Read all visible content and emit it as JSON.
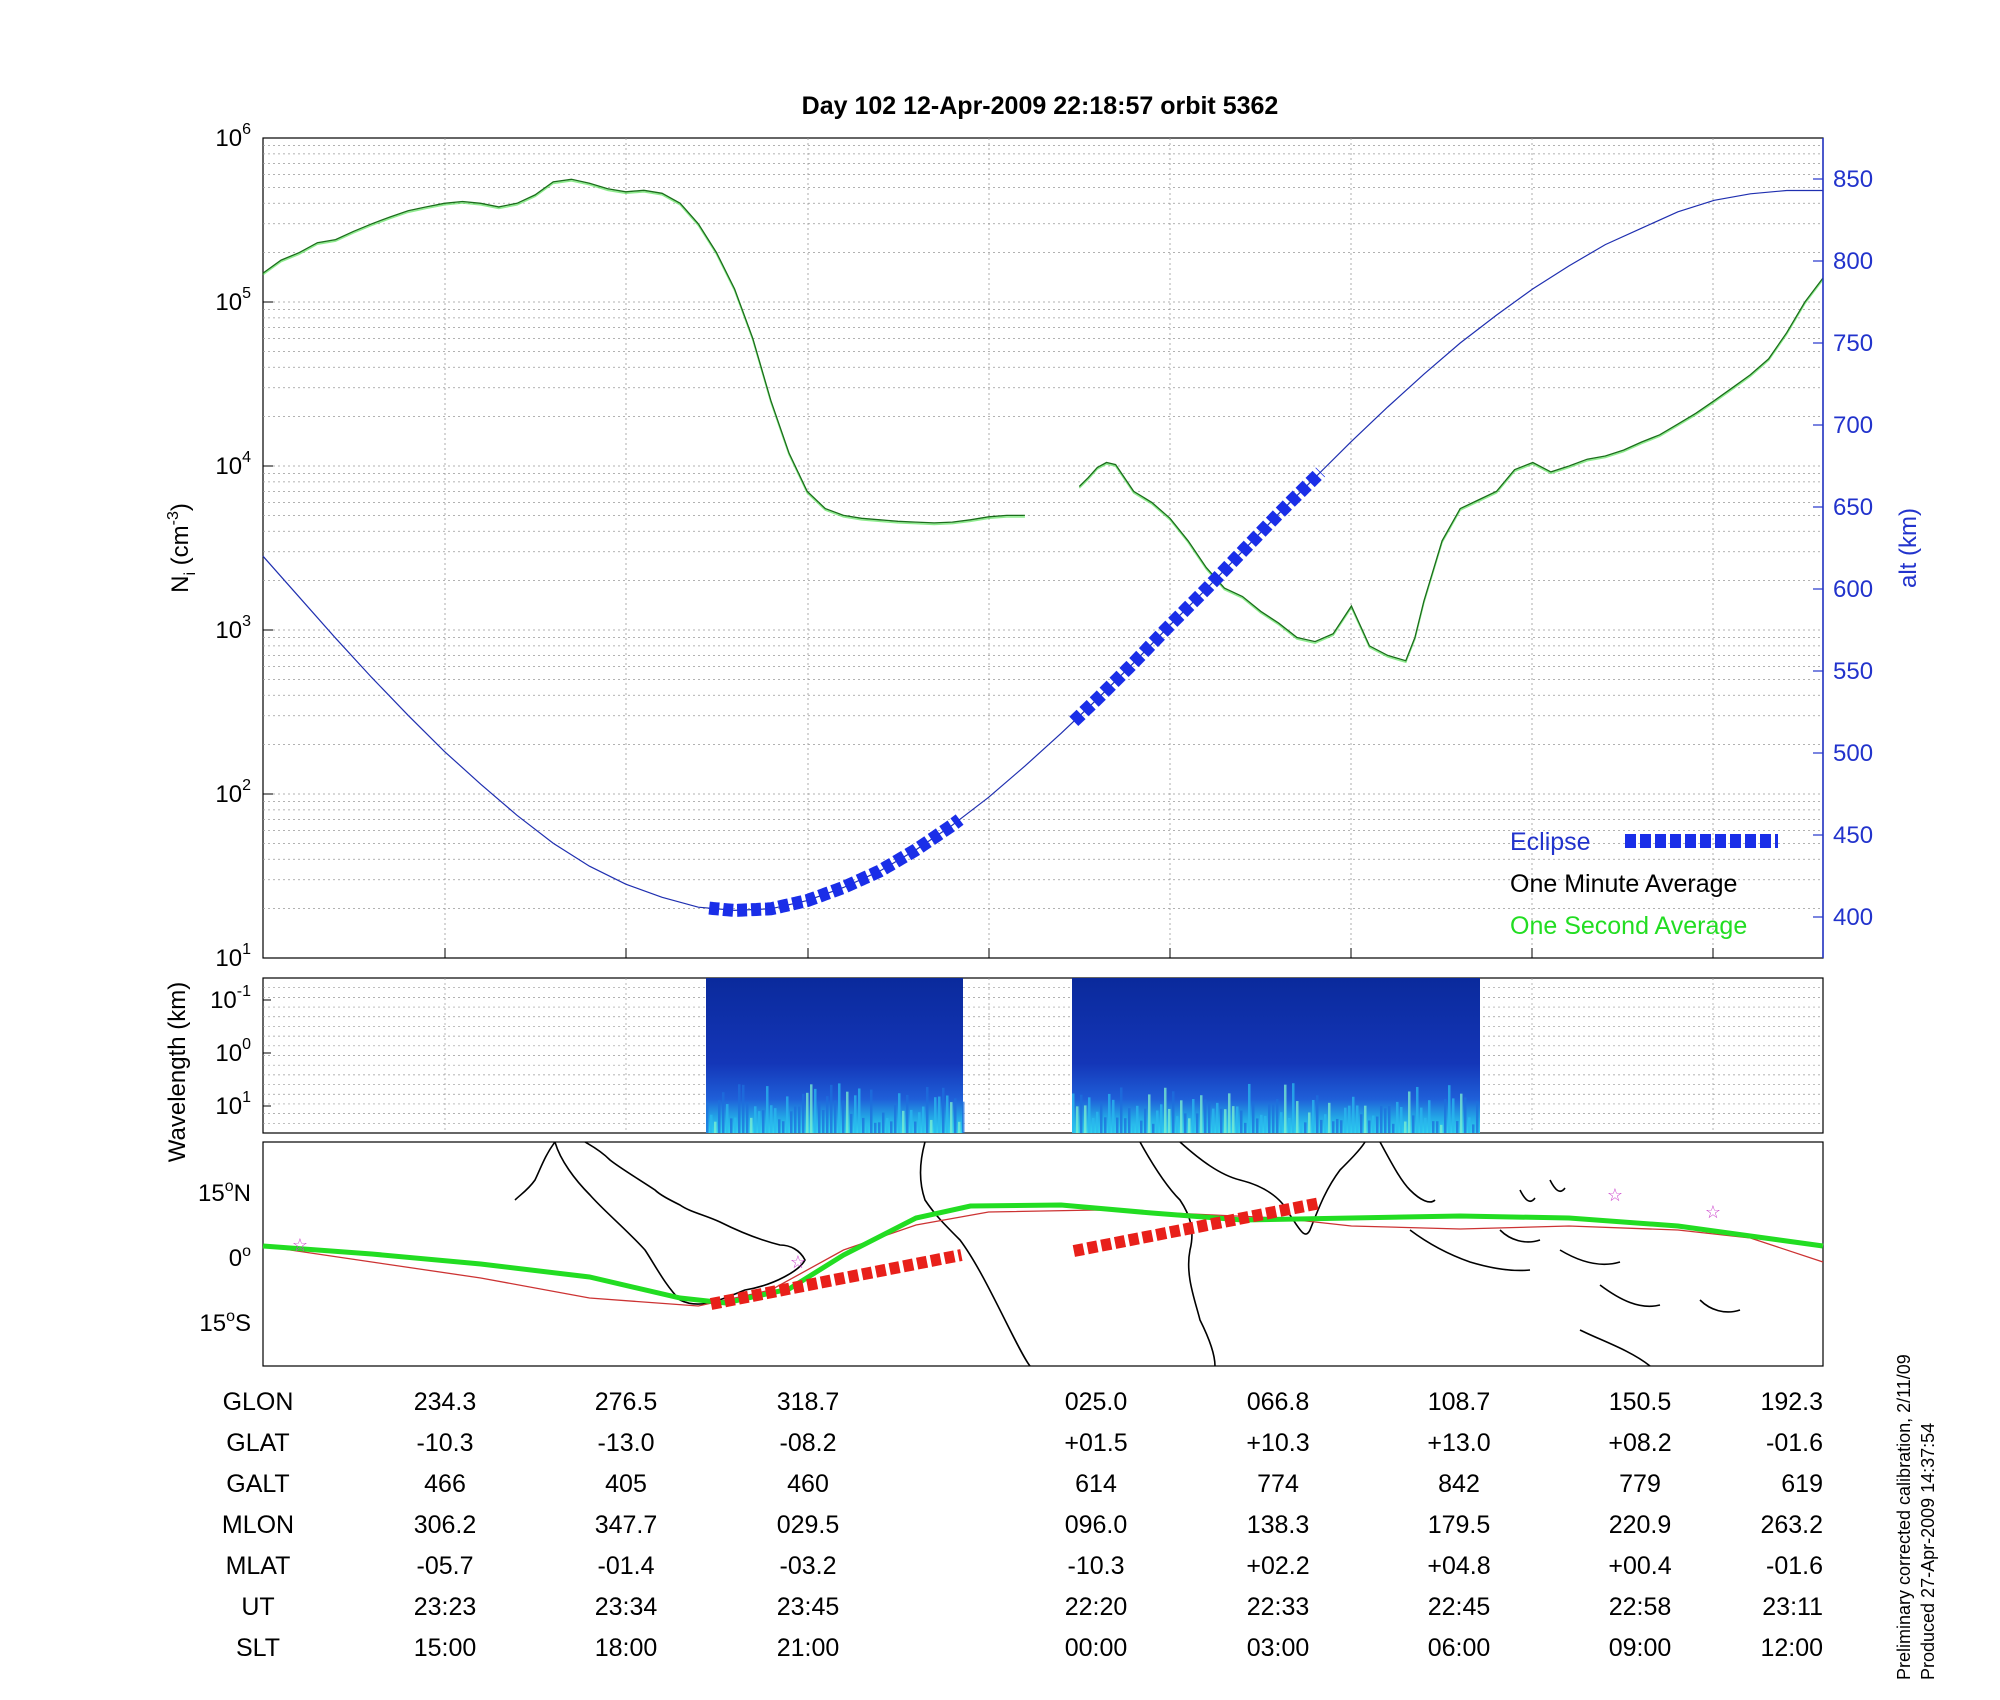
{
  "title": "Day 102  12-Apr-2009 22:18:57   orbit 5362",
  "colors": {
    "density": "#1a6e1a",
    "density_raw": "#33dd33",
    "altitude": "#1f2fb0",
    "eclipse": "#1a2ee8",
    "eclipse_map": "#e8201a",
    "footprint": "#22dd22",
    "orbit_track": "#cc3333",
    "star": "#cc44cc"
  },
  "chart_data": [
    {
      "type": "line",
      "panel": "density",
      "ylabel": "N_i (cm^-3)",
      "ylabel_main": "N",
      "ylabel_sub": "i",
      "ylabel_pre": " (cm",
      "ylabel_sup": "-3",
      "ylabel_post": ")",
      "ylabel_right": "alt (km)",
      "yscale": "log",
      "ylim": [
        10,
        1000000
      ],
      "y2lim": [
        375,
        875
      ],
      "x_range": [
        0,
        8.6
      ],
      "yticks": [
        {
          "v": 10,
          "base": "10",
          "exp": "1"
        },
        {
          "v": 100,
          "base": "10",
          "exp": "2"
        },
        {
          "v": 1000,
          "base": "10",
          "exp": "3"
        },
        {
          "v": 10000,
          "base": "10",
          "exp": "4"
        },
        {
          "v": 100000,
          "base": "10",
          "exp": "5"
        },
        {
          "v": 1000000,
          "base": "10",
          "exp": "6"
        }
      ],
      "y2ticks": [
        "400",
        "450",
        "500",
        "550",
        "600",
        "650",
        "700",
        "750",
        "800",
        "850"
      ],
      "legend_position": "bottom-right",
      "legend": {
        "eclipse": "Eclipse",
        "minute": "One Minute Average",
        "second": "One Second Average"
      },
      "series": [
        {
          "name": "One Minute Average",
          "segment1": {
            "x": [
              0.0,
              0.1,
              0.2,
              0.3,
              0.4,
              0.5,
              0.6,
              0.7,
              0.8,
              0.9,
              1.0,
              1.1,
              1.2,
              1.3,
              1.4,
              1.5,
              1.6,
              1.7,
              1.8,
              1.9,
              2.0,
              2.1,
              2.2,
              2.3,
              2.4,
              2.5,
              2.6,
              2.7,
              2.8,
              2.9,
              3.0,
              3.1,
              3.2,
              3.3,
              3.4,
              3.5,
              3.6,
              3.7,
              3.8,
              3.9,
              4.0,
              4.1,
              4.2,
              4.3,
              4.4,
              4.5,
              4.6,
              4.7,
              4.8,
              4.9,
              5.0,
              5.1,
              5.2,
              5.3,
              5.4,
              5.5,
              5.6,
              5.7,
              5.8,
              5.9,
              6.0,
              6.1,
              6.2,
              6.3,
              6.4,
              6.5,
              6.6,
              6.7,
              6.8,
              6.9,
              7.0,
              7.1,
              7.2,
              7.3,
              7.4,
              7.5,
              7.6,
              7.7,
              7.8,
              7.9,
              8.0,
              8.1,
              8.2,
              8.3,
              8.4,
              8.5,
              8.6
            ],
            "y": [
              150000,
              180000,
              200000,
              230000,
              240000,
              270000,
              300000,
              330000,
              360000,
              380000,
              400000,
              410000,
              400000,
              380000,
              400000,
              450000,
              540000,
              560000,
              530000,
              490000,
              470000,
              480000,
              460000,
              400000,
              300000,
              200000,
              120000,
              60000,
              25000,
              12000,
              7000,
              5500,
              5000,
              4800,
              4700,
              4600,
              4550,
              4500,
              4550,
              4700,
              4900,
              5000,
              5000,
              null,
              null,
              null,
              null,
              null,
              null,
              null,
              null,
              null,
              null,
              null,
              null,
              null,
              null,
              null,
              null,
              null,
              null,
              null,
              null,
              null,
              null,
              null,
              null,
              null,
              null,
              null,
              null,
              null,
              null,
              null,
              null,
              null,
              null,
              null,
              null,
              null,
              null,
              null,
              null,
              null,
              null,
              null,
              null
            ]
          },
          "segment2": {
            "x": [
              4.5,
              4.55,
              4.6,
              4.65,
              4.7,
              4.8,
              4.9,
              5.0,
              5.1,
              5.2,
              5.3,
              5.4,
              5.5,
              5.6,
              5.7,
              5.8,
              5.9,
              6.0,
              6.1,
              6.2,
              6.3,
              6.35,
              6.4,
              6.5,
              6.6,
              6.7,
              6.8,
              6.9,
              7.0,
              7.1,
              7.2,
              7.3,
              7.4,
              7.5,
              7.6,
              7.7,
              7.8,
              7.9,
              8.0,
              8.1,
              8.2,
              8.3,
              8.4,
              8.5,
              8.6
            ],
            "y": [
              7500,
              8500,
              9800,
              10500,
              10200,
              7000,
              6000,
              4800,
              3500,
              2400,
              1800,
              1600,
              1300,
              1100,
              900,
              850,
              950,
              1400,
              800,
              700,
              650,
              900,
              1500,
              3500,
              5500,
              6200,
              7000,
              9500,
              10500,
              9200,
              10000,
              11000,
              11500,
              12500,
              14000,
              15500,
              18000,
              21000,
              25000,
              30000,
              36000,
              45000,
              65000,
              100000,
              140000
            ]
          }
        },
        {
          "name": "Altitude",
          "axis": "right",
          "x": [
            0.0,
            0.2,
            0.4,
            0.6,
            0.8,
            1.0,
            1.2,
            1.4,
            1.6,
            1.8,
            2.0,
            2.2,
            2.4,
            2.6,
            2.8,
            3.0,
            3.2,
            3.4,
            3.6,
            3.8,
            4.0,
            4.2,
            4.4,
            4.6,
            4.8,
            5.0,
            5.2,
            5.4,
            5.6,
            5.8,
            6.0,
            6.2,
            6.4,
            6.6,
            6.8,
            7.0,
            7.2,
            7.4,
            7.6,
            7.8,
            8.0,
            8.2,
            8.4,
            8.6
          ],
          "y": [
            620,
            595,
            570,
            546,
            523,
            501,
            481,
            462,
            445,
            431,
            420,
            412,
            406,
            404,
            405,
            410,
            418,
            428,
            441,
            456,
            473,
            492,
            512,
            533,
            555,
            578,
            600,
            623,
            646,
            668,
            690,
            711,
            731,
            750,
            767,
            783,
            797,
            810,
            820,
            830,
            837,
            841,
            843,
            843
          ]
        }
      ],
      "eclipse_segments": [
        {
          "x": [
            2.7,
            2.9,
            3.1,
            3.3,
            3.5,
            3.7,
            3.9,
            4.1,
            4.3,
            4.5,
            4.7,
            4.9,
            5.1,
            5.3,
            5.5,
            5.7,
            5.9
          ],
          "note": "eclipse-1"
        }
      ]
    },
    {
      "type": "heatmap",
      "panel": "spectrogram",
      "ylabel": "Wavelength (km)",
      "yticks": [
        {
          "base": "10",
          "exp": "-1"
        },
        {
          "base": "10",
          "exp": "0"
        },
        {
          "base": "10",
          "exp": "1"
        }
      ],
      "data_blocks": [
        "block-1",
        "block-2"
      ]
    },
    {
      "type": "map",
      "panel": "ground-track",
      "yticks": [
        {
          "deg": "15",
          "hem": "N"
        },
        {
          "deg": "0",
          "hem": ""
        },
        {
          "deg": "15",
          "hem": "S"
        }
      ]
    }
  ],
  "table": {
    "row_labels": [
      "GLON",
      "GLAT",
      "GALT",
      "MLON",
      "MLAT",
      "UT",
      "SLT"
    ],
    "columns": [
      [
        "234.3",
        "-10.3",
        "466",
        "306.2",
        "-05.7",
        "23:23",
        "15:00"
      ],
      [
        "276.5",
        "-13.0",
        "405",
        "347.7",
        "-01.4",
        "23:34",
        "18:00"
      ],
      [
        "318.7",
        "-08.2",
        "460",
        "029.5",
        "-03.2",
        "23:45",
        "21:00"
      ],
      [
        "025.0",
        "+01.5",
        "614",
        "096.0",
        "-10.3",
        "22:20",
        "00:00"
      ],
      [
        "066.8",
        "+10.3",
        "774",
        "138.3",
        "+02.2",
        "22:33",
        "03:00"
      ],
      [
        "108.7",
        "+13.0",
        "842",
        "179.5",
        "+04.8",
        "22:45",
        "06:00"
      ],
      [
        "150.5",
        "+08.2",
        "779",
        "220.9",
        "+00.4",
        "22:58",
        "09:00"
      ],
      [
        "192.3",
        "-01.6",
        "619",
        "263.2",
        "-01.6",
        "23:11",
        "12:00"
      ]
    ]
  },
  "footer": {
    "line1": "Preliminary corrected calibration, 2/11/09",
    "line2": "Produced 27-Apr-2009 14:37:54"
  }
}
